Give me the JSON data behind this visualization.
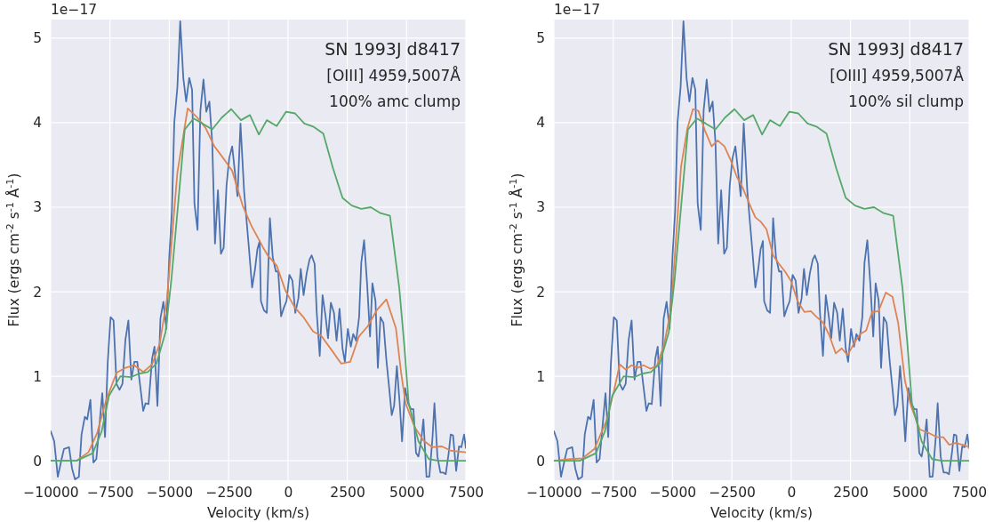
{
  "chart_data": [
    {
      "type": "line",
      "xlabel": "Velocity (km/s)",
      "ylabel": "Flux (ergs cm$^{-2}$ s$^{-1}$ Å$^{-1}$)",
      "annotations": [
        "1e−17",
        "SN 1993J d8417",
        "[OIII] 4959,5007Å",
        "100% amc clump"
      ],
      "xlim": [
        -10000,
        7500
      ],
      "ylim": [
        -0.23,
        5.22
      ],
      "xticks": [
        {
          "value": -10000,
          "label": "−10000"
        },
        {
          "value": -7500,
          "label": "−7500"
        },
        {
          "value": -5000,
          "label": "−5000"
        },
        {
          "value": -2500,
          "label": "−2500"
        },
        0,
        2500,
        5000,
        7500
      ],
      "yticks": [
        0,
        1,
        2,
        3,
        4,
        5
      ],
      "grid": true,
      "series": [
        {
          "color": "#4c72b0",
          "x": [
            -10000,
            -9850,
            -9700,
            -9540,
            -9440,
            -9225,
            -9100,
            -8975,
            -8810,
            -8700,
            -8560,
            -8460,
            -8325,
            -8200,
            -8075,
            -7825,
            -7710,
            -7600,
            -7475,
            -7350,
            -7225,
            -7100,
            -6975,
            -6850,
            -6725,
            -6600,
            -6475,
            -6350,
            -6100,
            -6000,
            -5875,
            -5725,
            -5625,
            -5500,
            -5375,
            -5250,
            -5125,
            -5000,
            -4890,
            -4790,
            -4660,
            -4540,
            -4410,
            -4290,
            -4160,
            -4040,
            -3940,
            -3810,
            -3690,
            -3560,
            -3440,
            -3310,
            -3190,
            -3075,
            -2950,
            -2825,
            -2710,
            -2590,
            -2475,
            -2350,
            -2225,
            -2125,
            -2000,
            -1850,
            -1725,
            -1640,
            -1510,
            -1390,
            -1290,
            -1190,
            -1140,
            -1010,
            -890,
            -760,
            -640,
            -510,
            -410,
            -290,
            -160,
            -60,
            60,
            190,
            310,
            440,
            540,
            660,
            790,
            910,
            1000,
            1125,
            1210,
            1340,
            1460,
            1590,
            1690,
            1810,
            1940,
            2050,
            2175,
            2300,
            2400,
            2525,
            2650,
            2750,
            2875,
            3000,
            3090,
            3210,
            3340,
            3460,
            3560,
            3690,
            3790,
            3900,
            4025,
            4150,
            4275,
            4375,
            4475,
            4590,
            4710,
            4810,
            4940,
            5060,
            5190,
            5290,
            5400,
            5500,
            5625,
            5710,
            5840,
            5960,
            6090,
            6175,
            6300,
            6425,
            6550,
            6650,
            6775,
            6860,
            6960,
            7090,
            7210,
            7310,
            7425,
            7500
          ],
          "values": [
            0.35,
            0.23,
            -0.19,
            0.02,
            0.14,
            0.16,
            -0.09,
            -0.22,
            -0.19,
            0.31,
            0.52,
            0.49,
            0.72,
            -0.02,
            0.02,
            0.8,
            0.28,
            1.14,
            1.7,
            1.66,
            0.91,
            0.84,
            0.91,
            1.43,
            1.66,
            0.96,
            1.17,
            1.17,
            0.59,
            0.68,
            0.67,
            1.21,
            1.35,
            0.65,
            1.68,
            1.88,
            1.56,
            2.43,
            2.95,
            4.0,
            4.42,
            5.2,
            4.53,
            4.25,
            4.53,
            4.39,
            3.04,
            2.73,
            4.14,
            4.51,
            4.13,
            4.25,
            3.76,
            2.57,
            3.2,
            2.45,
            2.52,
            3.25,
            3.58,
            3.72,
            3.39,
            3.13,
            3.99,
            3.2,
            2.78,
            2.5,
            2.05,
            2.26,
            2.5,
            2.6,
            1.89,
            1.78,
            1.75,
            2.87,
            2.41,
            2.24,
            2.24,
            1.71,
            1.82,
            1.89,
            2.2,
            2.13,
            1.75,
            1.92,
            2.27,
            1.96,
            2.22,
            2.38,
            2.43,
            2.33,
            1.77,
            1.24,
            1.96,
            1.7,
            1.45,
            1.87,
            1.75,
            1.42,
            1.8,
            1.33,
            1.17,
            1.56,
            1.35,
            1.5,
            1.42,
            1.7,
            2.34,
            2.61,
            2.08,
            1.47,
            2.1,
            1.89,
            1.1,
            1.7,
            1.63,
            1.19,
            0.84,
            0.54,
            0.65,
            1.12,
            0.68,
            0.23,
            0.86,
            0.68,
            0.61,
            0.61,
            0.09,
            0.05,
            0.26,
            0.49,
            -0.19,
            -0.19,
            0.26,
            0.68,
            0.05,
            -0.14,
            -0.14,
            -0.16,
            0.09,
            0.31,
            0.3,
            -0.12,
            0.17,
            0.16,
            0.31,
            0.15
          ]
        },
        {
          "color": "#dd8452",
          "x": [
            -10000,
            -8910,
            -8410,
            -8040,
            -7660,
            -7225,
            -6850,
            -6475,
            -6100,
            -5725,
            -5410,
            -5100,
            -4660,
            -4225,
            -3850,
            -3475,
            -3100,
            -2725,
            -2350,
            -1910,
            -1540,
            -1060,
            -850,
            -475,
            -100,
            275,
            650,
            1060,
            1400,
            1840,
            2240,
            2625,
            2990,
            3360,
            3740,
            4150,
            4550,
            4775,
            4960,
            5340,
            5710,
            6090,
            6490,
            6860,
            7500
          ],
          "values": [
            0,
            0,
            0.1,
            0.33,
            0.72,
            1.04,
            1.1,
            1.13,
            1.05,
            1.14,
            1.38,
            1.91,
            3.41,
            4.17,
            4.07,
            3.94,
            3.72,
            3.58,
            3.43,
            3.02,
            2.78,
            2.53,
            2.43,
            2.31,
            2.01,
            1.82,
            1.7,
            1.53,
            1.48,
            1.31,
            1.15,
            1.17,
            1.47,
            1.59,
            1.78,
            1.91,
            1.57,
            1.03,
            0.68,
            0.4,
            0.24,
            0.16,
            0.17,
            0.12,
            0.1
          ]
        },
        {
          "color": "#55a868",
          "x": [
            -10000,
            -8910,
            -8225,
            -7850,
            -7540,
            -7060,
            -6600,
            -6290,
            -5910,
            -5540,
            -5160,
            -4910,
            -4350,
            -3975,
            -3600,
            -3190,
            -2790,
            -2390,
            -1980,
            -1600,
            -1225,
            -890,
            -475,
            -75,
            300,
            690,
            1090,
            1490,
            1900,
            2300,
            2690,
            3090,
            3490,
            3900,
            4300,
            4690,
            4900,
            5090,
            5500,
            5940,
            6340,
            7500
          ],
          "values": [
            0,
            0,
            0.09,
            0.35,
            0.77,
            1.0,
            0.99,
            1.03,
            1.05,
            1.15,
            1.52,
            2.15,
            3.92,
            4.05,
            3.99,
            3.92,
            4.06,
            4.16,
            4.03,
            4.09,
            3.86,
            4.03,
            3.96,
            4.13,
            4.11,
            3.99,
            3.95,
            3.87,
            3.46,
            3.11,
            3.02,
            2.98,
            3.0,
            2.93,
            2.9,
            2.05,
            1.38,
            0.68,
            0.23,
            0.02,
            0,
            0
          ]
        }
      ]
    },
    {
      "type": "line",
      "xlabel": "Velocity (km/s)",
      "ylabel": "Flux (ergs cm$^{-2}$ s$^{-1}$ Å$^{-1}$)",
      "annotations": [
        "1e−17",
        "SN 1993J d8417",
        "[OIII] 4959,5007Å",
        "100% sil clump"
      ],
      "xlim": [
        -10000,
        7500
      ],
      "ylim": [
        -0.23,
        5.22
      ],
      "xticks": [
        {
          "value": -10000,
          "label": "−10000"
        },
        {
          "value": -7500,
          "label": "−7500"
        },
        {
          "value": -5000,
          "label": "−5000"
        },
        {
          "value": -2500,
          "label": "−2500"
        },
        0,
        2500,
        5000,
        7500
      ],
      "yticks": [
        0,
        1,
        2,
        3,
        4,
        5
      ],
      "grid": true,
      "series": [
        {
          "color": "#4c72b0",
          "x": [
            -10000,
            -9850,
            -9700,
            -9540,
            -9440,
            -9225,
            -9100,
            -8975,
            -8810,
            -8700,
            -8560,
            -8460,
            -8325,
            -8200,
            -8075,
            -7825,
            -7710,
            -7600,
            -7475,
            -7350,
            -7225,
            -7100,
            -6975,
            -6850,
            -6725,
            -6600,
            -6475,
            -6350,
            -6100,
            -6000,
            -5875,
            -5725,
            -5625,
            -5500,
            -5375,
            -5250,
            -5125,
            -5000,
            -4890,
            -4790,
            -4660,
            -4540,
            -4410,
            -4290,
            -4160,
            -4040,
            -3940,
            -3810,
            -3690,
            -3560,
            -3440,
            -3310,
            -3190,
            -3075,
            -2950,
            -2825,
            -2710,
            -2590,
            -2475,
            -2350,
            -2225,
            -2125,
            -2000,
            -1850,
            -1725,
            -1640,
            -1510,
            -1390,
            -1290,
            -1190,
            -1140,
            -1010,
            -890,
            -760,
            -640,
            -510,
            -410,
            -290,
            -160,
            -60,
            60,
            190,
            310,
            440,
            540,
            660,
            790,
            910,
            1000,
            1125,
            1210,
            1340,
            1460,
            1590,
            1690,
            1810,
            1940,
            2050,
            2175,
            2300,
            2400,
            2525,
            2650,
            2750,
            2875,
            3000,
            3090,
            3210,
            3340,
            3460,
            3560,
            3690,
            3790,
            3900,
            4025,
            4150,
            4275,
            4375,
            4475,
            4590,
            4710,
            4810,
            4940,
            5060,
            5190,
            5290,
            5400,
            5500,
            5625,
            5710,
            5840,
            5960,
            6090,
            6175,
            6300,
            6425,
            6550,
            6650,
            6775,
            6860,
            6960,
            7090,
            7210,
            7310,
            7425,
            7500
          ],
          "values": [
            0.35,
            0.23,
            -0.19,
            0.02,
            0.14,
            0.16,
            -0.09,
            -0.22,
            -0.19,
            0.31,
            0.52,
            0.49,
            0.72,
            -0.02,
            0.02,
            0.8,
            0.28,
            1.14,
            1.7,
            1.66,
            0.91,
            0.84,
            0.91,
            1.43,
            1.66,
            0.96,
            1.17,
            1.17,
            0.59,
            0.68,
            0.67,
            1.21,
            1.35,
            0.65,
            1.68,
            1.88,
            1.56,
            2.43,
            2.95,
            4.0,
            4.42,
            5.2,
            4.53,
            4.25,
            4.53,
            4.39,
            3.04,
            2.73,
            4.14,
            4.51,
            4.13,
            4.25,
            3.76,
            2.57,
            3.2,
            2.45,
            2.52,
            3.25,
            3.58,
            3.72,
            3.39,
            3.13,
            3.99,
            3.2,
            2.78,
            2.5,
            2.05,
            2.26,
            2.5,
            2.6,
            1.89,
            1.78,
            1.75,
            2.87,
            2.41,
            2.24,
            2.24,
            1.71,
            1.82,
            1.89,
            2.2,
            2.13,
            1.75,
            1.92,
            2.27,
            1.96,
            2.22,
            2.38,
            2.43,
            2.33,
            1.77,
            1.24,
            1.96,
            1.7,
            1.45,
            1.87,
            1.75,
            1.42,
            1.8,
            1.33,
            1.17,
            1.56,
            1.35,
            1.5,
            1.42,
            1.7,
            2.34,
            2.61,
            2.08,
            1.47,
            2.1,
            1.89,
            1.1,
            1.7,
            1.63,
            1.19,
            0.84,
            0.54,
            0.65,
            1.12,
            0.68,
            0.23,
            0.86,
            0.68,
            0.61,
            0.61,
            0.09,
            0.05,
            0.26,
            0.49,
            -0.19,
            -0.19,
            0.26,
            0.68,
            0.05,
            -0.14,
            -0.14,
            -0.16,
            0.09,
            0.31,
            0.3,
            -0.12,
            0.17,
            0.16,
            0.31,
            0.15
          ]
        },
        {
          "color": "#dd8452",
          "x": [
            -10000,
            -9290,
            -8790,
            -8290,
            -7790,
            -7475,
            -7225,
            -6975,
            -6725,
            -6475,
            -6225,
            -5940,
            -5660,
            -5350,
            -5060,
            -4640,
            -4375,
            -4140,
            -3910,
            -3625,
            -3350,
            -3100,
            -2810,
            -2540,
            -2290,
            -2040,
            -1790,
            -1510,
            -1290,
            -1040,
            -760,
            -510,
            -260,
            -10,
            270,
            560,
            830,
            1080,
            1330,
            1600,
            1880,
            2130,
            2380,
            2670,
            2910,
            3160,
            3410,
            3680,
            3990,
            4270,
            4510,
            4800,
            5050,
            5420,
            5790,
            6140,
            6410,
            6660,
            6930,
            7220,
            7500
          ],
          "values": [
            0,
            0.02,
            0.03,
            0.14,
            0.47,
            0.82,
            1.14,
            1.08,
            1.13,
            1.1,
            1.13,
            1.09,
            1.12,
            1.38,
            1.8,
            3.48,
            3.93,
            4.16,
            4.14,
            3.9,
            3.72,
            3.79,
            3.72,
            3.55,
            3.36,
            3.23,
            3.06,
            2.88,
            2.83,
            2.74,
            2.43,
            2.33,
            2.24,
            2.13,
            1.89,
            1.76,
            1.77,
            1.7,
            1.64,
            1.49,
            1.27,
            1.33,
            1.25,
            1.4,
            1.5,
            1.54,
            1.76,
            1.77,
            1.99,
            1.94,
            1.63,
            0.94,
            0.65,
            0.37,
            0.33,
            0.28,
            0.28,
            0.19,
            0.21,
            0.19,
            0.16
          ]
        },
        {
          "color": "#55a868",
          "x": [
            -10000,
            -8910,
            -8225,
            -7850,
            -7540,
            -7060,
            -6600,
            -6290,
            -5910,
            -5540,
            -5160,
            -4910,
            -4350,
            -3975,
            -3600,
            -3190,
            -2790,
            -2390,
            -1980,
            -1600,
            -1225,
            -890,
            -475,
            -75,
            300,
            690,
            1090,
            1490,
            1900,
            2300,
            2690,
            3090,
            3490,
            3900,
            4300,
            4690,
            4900,
            5090,
            5500,
            5940,
            6340,
            7500
          ],
          "values": [
            0,
            0,
            0.09,
            0.35,
            0.77,
            1.0,
            0.99,
            1.03,
            1.05,
            1.15,
            1.52,
            2.15,
            3.92,
            4.05,
            3.99,
            3.92,
            4.06,
            4.16,
            4.03,
            4.09,
            3.86,
            4.03,
            3.96,
            4.13,
            4.11,
            3.99,
            3.95,
            3.87,
            3.46,
            3.11,
            3.02,
            2.98,
            3.0,
            2.93,
            2.9,
            2.05,
            1.38,
            0.68,
            0.23,
            0.02,
            0,
            0
          ]
        }
      ]
    }
  ]
}
